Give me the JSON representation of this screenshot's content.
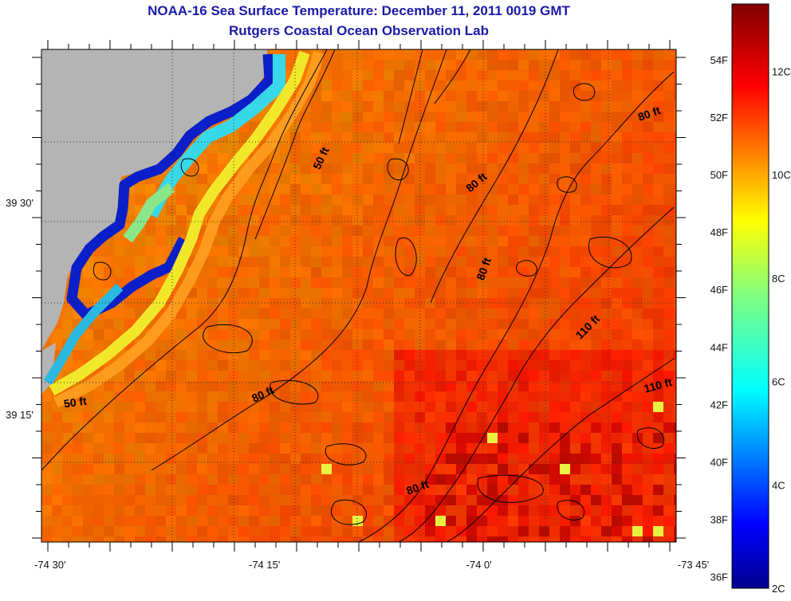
{
  "title": {
    "line1": "NOAA-16 Sea Surface Temperature:  December 11, 2011 0019 GMT",
    "line2": "Rutgers Coastal Ocean Observation Lab"
  },
  "map": {
    "x_ticks": [
      {
        "label": "-74 30'",
        "value": -74.5
      },
      {
        "label": "-74 15'",
        "value": -74.25
      },
      {
        "label": "-74 0'",
        "value": -74.0
      },
      {
        "label": "-73 45'",
        "value": -73.75
      }
    ],
    "y_ticks": [
      {
        "label": "39 30'",
        "value": 39.5
      },
      {
        "label": "39 15'",
        "value": 39.25
      }
    ],
    "lon_range": [
      -74.51,
      -73.77
    ],
    "lat_range": [
      39.1,
      39.68
    ],
    "contours": [
      {
        "label": "50 ft",
        "lon": -74.18,
        "lat": 39.55,
        "angle": -65
      },
      {
        "label": "80 ft",
        "lon": -74.0,
        "lat": 39.52,
        "angle": -40
      },
      {
        "label": "80 ft",
        "lon": -73.8,
        "lat": 39.6,
        "angle": -20
      },
      {
        "label": "80 ft",
        "lon": -73.99,
        "lat": 39.42,
        "angle": -70
      },
      {
        "label": "110 ft",
        "lon": -73.87,
        "lat": 39.35,
        "angle": -45
      },
      {
        "label": "110 ft",
        "lon": -73.79,
        "lat": 39.28,
        "angle": -15
      },
      {
        "label": "50 ft",
        "lon": -74.47,
        "lat": 39.26,
        "angle": -8
      },
      {
        "label": "80 ft",
        "lon": -74.25,
        "lat": 39.27,
        "angle": -25
      },
      {
        "label": "80 ft",
        "lon": -74.07,
        "lat": 39.16,
        "angle": -20
      }
    ]
  },
  "colorbar": {
    "fahrenheit": [
      {
        "label": "54F",
        "value": 54
      },
      {
        "label": "52F",
        "value": 52
      },
      {
        "label": "50F",
        "value": 50
      },
      {
        "label": "48F",
        "value": 48
      },
      {
        "label": "46F",
        "value": 46
      },
      {
        "label": "44F",
        "value": 44
      },
      {
        "label": "42F",
        "value": 42
      },
      {
        "label": "40F",
        "value": 40
      },
      {
        "label": "38F",
        "value": 38
      },
      {
        "label": "36F",
        "value": 36
      }
    ],
    "celsius": [
      {
        "label": "12C",
        "value": 12
      },
      {
        "label": "10C",
        "value": 10
      },
      {
        "label": "8C",
        "value": 8
      },
      {
        "label": "6C",
        "value": 6
      },
      {
        "label": "4C",
        "value": 4
      },
      {
        "label": "2C",
        "value": 2
      }
    ],
    "range_c": [
      2,
      13.3
    ]
  },
  "colors": {
    "land": "#b4b4b4",
    "title": "#1a1aa8"
  }
}
